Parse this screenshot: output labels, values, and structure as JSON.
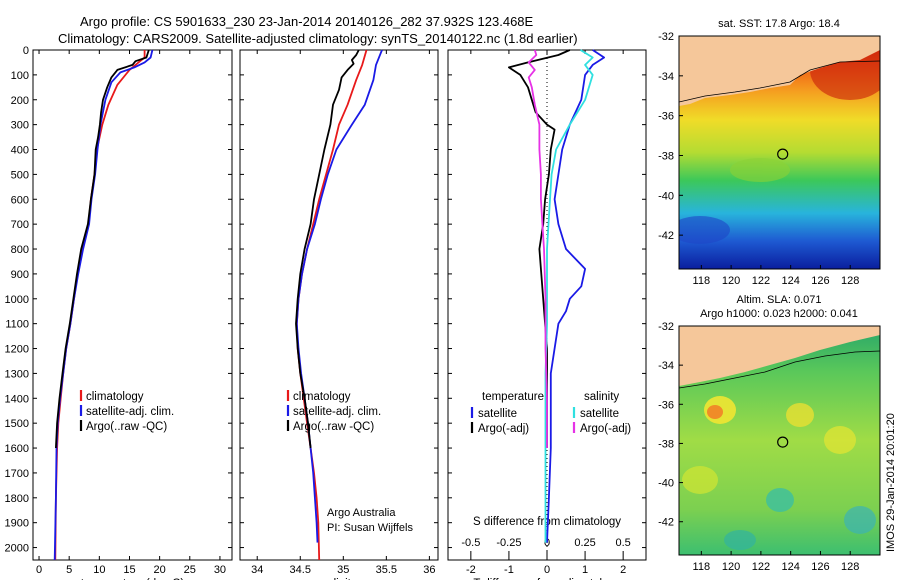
{
  "figure": {
    "title_line1": "Argo profile: CS 5901633_230 23-Jan-2014 20140126_282 37.932S 123.468E",
    "title_line2": "Climatology: CARS2009. Satellite-adjusted climatology: synTS_20140122.nc (1.8d earlier)",
    "watermark": "IMOS 29-Jan-2014 20:01:20",
    "colors": {
      "climatology": "#e8191a",
      "satellite": "#1a1ae6",
      "argo": "#000000",
      "sat_salinity": "#2fe0e0",
      "argo_adj_salinity": "#e632e6",
      "land": "#f5c79a"
    }
  },
  "chart_data": [
    {
      "type": "line",
      "id": "temperature",
      "xlabel": "temperature (deg C)",
      "ylabel": "",
      "xlim": [
        -1,
        32
      ],
      "ylim": [
        2050,
        0
      ],
      "xticks": [
        0,
        5,
        10,
        15,
        20,
        25,
        30
      ],
      "yticks": [
        0,
        100,
        200,
        300,
        400,
        500,
        600,
        700,
        800,
        900,
        1000,
        1100,
        1200,
        1300,
        1400,
        1500,
        1600,
        1700,
        1800,
        1900,
        2000
      ],
      "legend": [
        "climatology",
        "satellite-adj. clim.",
        "Argo(..raw -QC)"
      ],
      "legend_placement": "lower-center",
      "series": [
        {
          "name": "climatology",
          "color": "#e8191a",
          "points": [
            [
              17.5,
              0
            ],
            [
              17.5,
              30
            ],
            [
              16.5,
              50
            ],
            [
              15,
              80
            ],
            [
              13,
              140
            ],
            [
              11.5,
              220
            ],
            [
              10.5,
              300
            ],
            [
              9.6,
              400
            ],
            [
              9.2,
              500
            ],
            [
              8.6,
              600
            ],
            [
              8.2,
              700
            ],
            [
              7.2,
              800
            ],
            [
              6.4,
              900
            ],
            [
              5.8,
              1000
            ],
            [
              5.2,
              1100
            ],
            [
              4.5,
              1200
            ],
            [
              4.0,
              1300
            ],
            [
              3.6,
              1400
            ],
            [
              3.2,
              1500
            ],
            [
              3.0,
              1600
            ],
            [
              2.8,
              1800
            ],
            [
              2.7,
              2050
            ]
          ]
        },
        {
          "name": "satellite-adj. clim.",
          "color": "#1a1ae6",
          "points": [
            [
              18.8,
              0
            ],
            [
              18.5,
              30
            ],
            [
              17.5,
              50
            ],
            [
              15.8,
              70
            ],
            [
              13.5,
              90
            ],
            [
              12,
              130
            ],
            [
              11,
              200
            ],
            [
              10.2,
              300
            ],
            [
              9.7,
              400
            ],
            [
              9.3,
              500
            ],
            [
              8.7,
              600
            ],
            [
              8.3,
              700
            ],
            [
              7.3,
              800
            ],
            [
              6.5,
              900
            ],
            [
              5.8,
              1000
            ],
            [
              5.2,
              1100
            ],
            [
              4.5,
              1200
            ],
            [
              4.0,
              1300
            ],
            [
              3.5,
              1400
            ],
            [
              3.1,
              1500
            ],
            [
              2.9,
              1600
            ],
            [
              2.8,
              1800
            ],
            [
              2.6,
              2050
            ]
          ]
        },
        {
          "name": "Argo(..raw -QC)",
          "color": "#000000",
          "points": [
            [
              18.2,
              0
            ],
            [
              17.8,
              30
            ],
            [
              16,
              45
            ],
            [
              15.5,
              60
            ],
            [
              13,
              80
            ],
            [
              12,
              110
            ],
            [
              11.3,
              150
            ],
            [
              10.6,
              200
            ],
            [
              10.3,
              250
            ],
            [
              10.1,
              300
            ],
            [
              9.8,
              350
            ],
            [
              9.4,
              400
            ],
            [
              9.2,
              500
            ],
            [
              8.6,
              600
            ],
            [
              8.1,
              700
            ],
            [
              7.0,
              800
            ],
            [
              6.3,
              900
            ],
            [
              5.7,
              1000
            ],
            [
              5.1,
              1100
            ],
            [
              4.4,
              1200
            ],
            [
              3.9,
              1300
            ],
            [
              3.4,
              1400
            ],
            [
              3.0,
              1500
            ],
            [
              2.8,
              1600
            ]
          ]
        }
      ]
    },
    {
      "type": "line",
      "id": "salinity",
      "xlabel": "salinity",
      "ylabel": "",
      "xlim": [
        33.8,
        36.1
      ],
      "ylim": [
        2050,
        0
      ],
      "xticks": [
        34,
        34.5,
        35,
        35.5,
        36
      ],
      "tick_labels": [
        "34",
        "34.5",
        "35",
        "35.5",
        "36"
      ],
      "legend": [
        "climatology",
        "satellite-adj. clim.",
        "Argo(..raw -QC)"
      ],
      "legend_placement": "lower-center",
      "annotation": [
        "Argo Australia",
        "PI: Susan Wijffels"
      ],
      "series": [
        {
          "name": "climatology",
          "color": "#e8191a",
          "points": [
            [
              35.27,
              0
            ],
            [
              35.22,
              60
            ],
            [
              35.15,
              120
            ],
            [
              35.05,
              220
            ],
            [
              34.95,
              300
            ],
            [
              34.88,
              400
            ],
            [
              34.8,
              500
            ],
            [
              34.72,
              600
            ],
            [
              34.65,
              700
            ],
            [
              34.58,
              800
            ],
            [
              34.52,
              900
            ],
            [
              34.48,
              1000
            ],
            [
              34.46,
              1100
            ],
            [
              34.47,
              1200
            ],
            [
              34.5,
              1300
            ],
            [
              34.54,
              1400
            ],
            [
              34.58,
              1500
            ],
            [
              34.62,
              1600
            ],
            [
              34.66,
              1700
            ],
            [
              34.69,
              1800
            ],
            [
              34.71,
              1900
            ],
            [
              34.72,
              2050
            ]
          ]
        },
        {
          "name": "satellite-adj. clim.",
          "color": "#1a1ae6",
          "points": [
            [
              35.45,
              0
            ],
            [
              35.38,
              60
            ],
            [
              35.35,
              120
            ],
            [
              35.25,
              220
            ],
            [
              35.1,
              300
            ],
            [
              34.92,
              400
            ],
            [
              34.82,
              500
            ],
            [
              34.74,
              600
            ],
            [
              34.67,
              700
            ],
            [
              34.58,
              800
            ],
            [
              34.52,
              900
            ],
            [
              34.48,
              1000
            ],
            [
              34.46,
              1100
            ],
            [
              34.48,
              1200
            ],
            [
              34.51,
              1300
            ],
            [
              34.55,
              1400
            ],
            [
              34.59,
              1500
            ],
            [
              34.62,
              1600
            ],
            [
              34.65,
              1700
            ],
            [
              34.67,
              1800
            ],
            [
              34.69,
              1900
            ],
            [
              34.7,
              1980
            ]
          ]
        },
        {
          "name": "Argo(..raw -QC)",
          "color": "#000000",
          "points": [
            [
              35.18,
              0
            ],
            [
              35.15,
              20
            ],
            [
              35.1,
              40
            ],
            [
              35.12,
              55
            ],
            [
              35.05,
              80
            ],
            [
              34.98,
              110
            ],
            [
              34.95,
              160
            ],
            [
              34.88,
              220
            ],
            [
              34.85,
              300
            ],
            [
              34.78,
              400
            ],
            [
              34.72,
              500
            ],
            [
              34.66,
              600
            ],
            [
              34.62,
              700
            ],
            [
              34.55,
              800
            ],
            [
              34.5,
              900
            ],
            [
              34.47,
              1000
            ],
            [
              34.45,
              1100
            ],
            [
              34.47,
              1200
            ],
            [
              34.5,
              1300
            ],
            [
              34.55,
              1400
            ],
            [
              34.59,
              1500
            ],
            [
              34.62,
              1600
            ]
          ]
        }
      ]
    },
    {
      "type": "line",
      "id": "differences",
      "xlabel": "T difference from climatology",
      "xlabel_top": "S difference from climatology",
      "xlim": [
        -2.6,
        2.6
      ],
      "ylim": [
        2050,
        0
      ],
      "xticks": [
        -2,
        -1,
        0,
        1,
        2
      ],
      "xticks_top": [
        -0.5,
        -0.25,
        0,
        0.25,
        0.5
      ],
      "legend_left_title": "temperature",
      "legend_right_title": "salinity",
      "legend": [
        "satellite",
        "Argo(-adj)",
        "satellite",
        "Argo(-adj)"
      ],
      "legend_placement": "lower-center",
      "series": [
        {
          "name": "temperature satellite",
          "color": "#1a1ae6",
          "points": [
            [
              1.2,
              0
            ],
            [
              1.5,
              30
            ],
            [
              1.2,
              60
            ],
            [
              1.0,
              100
            ],
            [
              0.9,
              200
            ],
            [
              0.6,
              300
            ],
            [
              0.4,
              400
            ],
            [
              0.3,
              500
            ],
            [
              0.2,
              600
            ],
            [
              0.3,
              700
            ],
            [
              0.5,
              800
            ],
            [
              1.0,
              880
            ],
            [
              0.9,
              950
            ],
            [
              0.6,
              1000
            ],
            [
              0.5,
              1050
            ],
            [
              0.3,
              1100
            ],
            [
              0.2,
              1200
            ],
            [
              0.1,
              1300
            ],
            [
              0.1,
              1600
            ],
            [
              0.05,
              1800
            ],
            [
              0.0,
              1980
            ]
          ]
        },
        {
          "name": "temperature Argo(-adj)",
          "color": "#000000",
          "points": [
            [
              0.6,
              0
            ],
            [
              0.3,
              20
            ],
            [
              -0.5,
              50
            ],
            [
              -1.0,
              70
            ],
            [
              -0.7,
              100
            ],
            [
              -0.5,
              150
            ],
            [
              -0.3,
              250
            ],
            [
              0.0,
              300
            ],
            [
              0.2,
              320
            ],
            [
              0.1,
              400
            ],
            [
              0.05,
              500
            ],
            [
              -0.05,
              600
            ],
            [
              -0.1,
              700
            ],
            [
              -0.2,
              800
            ],
            [
              -0.15,
              900
            ],
            [
              -0.1,
              1000
            ],
            [
              -0.05,
              1100
            ],
            [
              0.0,
              1200
            ],
            [
              0.0,
              1600
            ]
          ]
        },
        {
          "name": "salinity satellite",
          "color": "#2fe0e0",
          "points": [
            [
              0.22,
              0
            ],
            [
              0.3,
              30
            ],
            [
              0.25,
              60
            ],
            [
              0.3,
              100
            ],
            [
              0.25,
              200
            ],
            [
              0.15,
              300
            ],
            [
              0.06,
              400
            ],
            [
              0.03,
              500
            ],
            [
              0.02,
              600
            ],
            [
              0.01,
              700
            ],
            [
              0.0,
              800
            ],
            [
              0.0,
              1100
            ],
            [
              -0.01,
              1300
            ],
            [
              -0.01,
              1980
            ]
          ]
        },
        {
          "name": "salinity Argo(-adj)",
          "color": "#e632e6",
          "points": [
            [
              -0.08,
              0
            ],
            [
              -0.07,
              20
            ],
            [
              -0.12,
              50
            ],
            [
              -0.08,
              80
            ],
            [
              -0.12,
              110
            ],
            [
              -0.1,
              150
            ],
            [
              -0.08,
              220
            ],
            [
              -0.05,
              300
            ],
            [
              -0.05,
              400
            ],
            [
              -0.04,
              500
            ],
            [
              -0.04,
              600
            ],
            [
              -0.03,
              700
            ],
            [
              -0.02,
              800
            ],
            [
              -0.01,
              1000
            ],
            [
              -0.01,
              1200
            ],
            [
              0.0,
              1400
            ],
            [
              0.0,
              1600
            ]
          ]
        }
      ]
    },
    {
      "type": "heatmap",
      "id": "sst_map",
      "title": "sat. SST: 17.8 Argo: 18.4",
      "xlim": [
        116.5,
        130
      ],
      "ylim": [
        -43.7,
        -32
      ],
      "xticks": [
        118,
        120,
        122,
        124,
        126,
        128
      ],
      "yticks": [
        -32,
        -34,
        -36,
        -38,
        -40,
        -42
      ],
      "marker": {
        "lon": 123.468,
        "lat": -37.932
      }
    },
    {
      "type": "heatmap",
      "id": "sla_map",
      "title_line1": "Altim. SLA: 0.071",
      "title_line2": "Argo h1000: 0.023 h2000: 0.041",
      "xlim": [
        116.5,
        130
      ],
      "ylim": [
        -43.7,
        -32
      ],
      "xticks": [
        118,
        120,
        122,
        124,
        126,
        128
      ],
      "yticks": [
        -32,
        -34,
        -36,
        -38,
        -40,
        -42
      ],
      "marker": {
        "lon": 123.468,
        "lat": -37.932
      }
    }
  ]
}
